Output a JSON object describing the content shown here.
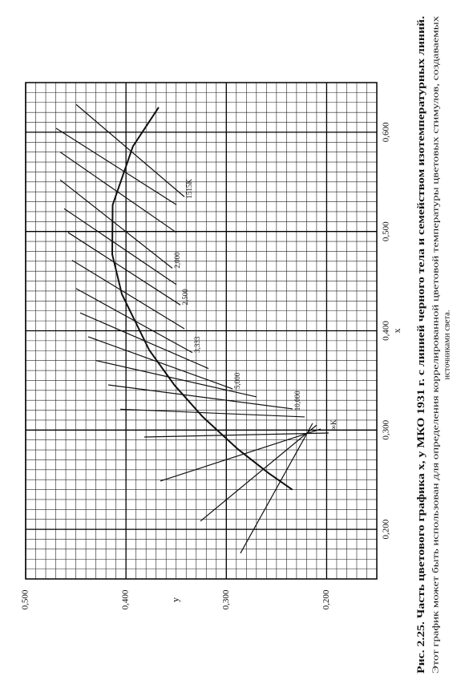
{
  "chart_data": {
    "type": "line",
    "title": "Рис. 2.25. Часть цветового графика x, y МКО 1931 г. с линией черного тела и семейством изотемпературных линий.",
    "subtitle": [
      "Этот график может быть использован для определения коррелированной цветовой температуры цветовых стимулов, создаваемых",
      "источниками света."
    ],
    "xlabel": "x",
    "ylabel": "y",
    "xlim": [
      0.15,
      0.65
    ],
    "ylim": [
      0.15,
      0.5
    ],
    "xticks": [
      {
        "value": 0.2,
        "label": "0,200"
      },
      {
        "value": 0.3,
        "label": "0,300"
      },
      {
        "value": 0.4,
        "label": "0,400"
      },
      {
        "value": 0.5,
        "label": "0,500"
      },
      {
        "value": 0.6,
        "label": "0,600"
      }
    ],
    "yticks": [
      {
        "value": 0.2,
        "label": "0,200"
      },
      {
        "value": 0.3,
        "label": "0,300"
      },
      {
        "value": 0.4,
        "label": "0,400"
      },
      {
        "value": 0.5,
        "label": "0,500"
      }
    ],
    "grid": true,
    "minor_grid_step": 0.01,
    "color": "#111111",
    "x": [
      0.6251,
      0.5857,
      0.5267,
      0.477,
      0.4369,
      0.3805,
      0.3451,
      0.3135,
      0.2807,
      0.2565,
      0.2399
    ],
    "series": [
      {
        "values": [
          0.3674,
          0.3931,
          0.4133,
          0.4137,
          0.4041,
          0.3768,
          0.3516,
          0.3237,
          0.2884,
          0.2577,
          0.2342
        ]
      }
    ],
    "isotemperature_lines": [
      {
        "label": null,
        "x": [
          0.604,
          0.527
        ],
        "y": [
          0.4696,
          0.3498
        ]
      },
      {
        "label": "1515K",
        "x": [
          0.628,
          0.535
        ],
        "y": [
          0.4497,
          0.3418
        ]
      },
      {
        "label": null,
        "x": [
          0.58,
          0.499
        ],
        "y": [
          0.4656,
          0.3498
        ]
      },
      {
        "label": "2,000",
        "x": [
          0.552,
          0.463
        ],
        "y": [
          0.4656,
          0.3538
        ]
      },
      {
        "label": null,
        "x": [
          0.523,
          0.4465
        ],
        "y": [
          0.4616,
          0.3498
        ]
      },
      {
        "label": "2,500",
        "x": [
          0.499,
          0.426
        ],
        "y": [
          0.4577,
          0.3458
        ]
      },
      {
        "label": null,
        "x": [
          0.471,
          0.402
        ],
        "y": [
          0.4537,
          0.3418
        ]
      },
      {
        "label": "3,333",
        "x": [
          0.4425,
          0.378
        ],
        "y": [
          0.4497,
          0.3338
        ]
      },
      {
        "label": null,
        "x": [
          0.418,
          0.362
        ],
        "y": [
          0.4457,
          0.3178
        ]
      },
      {
        "label": "5,000",
        "x": [
          0.394,
          0.3415
        ],
        "y": [
          0.4377,
          0.2938
        ]
      },
      {
        "label": null,
        "x": [
          0.37,
          0.3334
        ],
        "y": [
          0.4297,
          0.2699
        ]
      },
      {
        "label": "10,000",
        "x": [
          0.3455,
          0.3213
        ],
        "y": [
          0.4177,
          0.2339
        ]
      },
      {
        "label": null,
        "x": [
          0.321,
          0.3132
        ],
        "y": [
          0.4057,
          0.2219
        ]
      },
      {
        "label": "∞K",
        "x": [
          0.293,
          0.297
        ],
        "y": [
          0.3817,
          0.198
        ]
      },
      {
        "label": null,
        "x": [
          0.2486,
          0.301
        ],
        "y": [
          0.3658,
          0.206
        ]
      },
      {
        "label": null,
        "x": [
          0.2082,
          0.305
        ],
        "y": [
          0.3258,
          0.21
        ]
      },
      {
        "label": null,
        "x": [
          0.1759,
          0.3068
        ],
        "y": [
          0.2859,
          0.214
        ]
      }
    ]
  }
}
